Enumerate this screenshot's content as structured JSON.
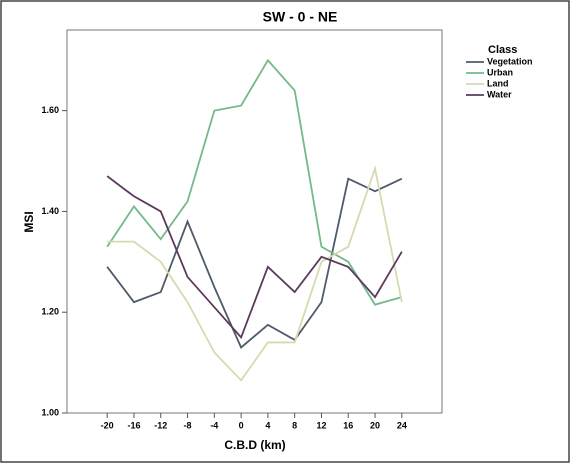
{
  "chart_data": {
    "type": "line",
    "title": "SW - 0 - NE",
    "x_label": "C.B.D (km)",
    "y_label": "MSI",
    "legend_title": "Class",
    "x": [
      -20,
      -16,
      -12,
      -8,
      -4,
      0,
      4,
      8,
      12,
      16,
      20,
      24
    ],
    "series": [
      {
        "name": "Vegetation",
        "color": "#4f5a6a",
        "values": [
          1.29,
          1.22,
          1.24,
          1.38,
          1.25,
          1.13,
          1.175,
          1.145,
          1.22,
          1.465,
          1.44,
          1.465
        ]
      },
      {
        "name": "Urban",
        "color": "#74b98a",
        "values": [
          1.33,
          1.41,
          1.345,
          1.42,
          1.6,
          1.61,
          1.7,
          1.64,
          1.33,
          1.3,
          1.215,
          1.23
        ]
      },
      {
        "name": "Land",
        "color": "#d6dab0",
        "values": [
          1.34,
          1.34,
          1.3,
          1.22,
          1.12,
          1.065,
          1.14,
          1.14,
          1.3,
          1.33,
          1.485,
          1.22
        ]
      },
      {
        "name": "Water",
        "color": "#5c3a5e",
        "values": [
          1.47,
          1.43,
          1.4,
          1.27,
          1.21,
          1.15,
          1.29,
          1.24,
          1.31,
          1.29,
          1.23,
          1.32
        ]
      }
    ],
    "xlim": [
      -26,
      30
    ],
    "ylim": [
      1.0,
      1.76
    ],
    "xticks": [
      -20,
      -16,
      -12,
      -8,
      -4,
      0,
      4,
      8,
      12,
      16,
      20,
      24
    ],
    "yticks": [
      {
        "value": 1.0,
        "label": "1.00"
      },
      {
        "value": 1.2,
        "label": "1.20"
      },
      {
        "value": 1.4,
        "label": "1.40"
      },
      {
        "value": 1.6,
        "label": "1.60"
      }
    ]
  }
}
